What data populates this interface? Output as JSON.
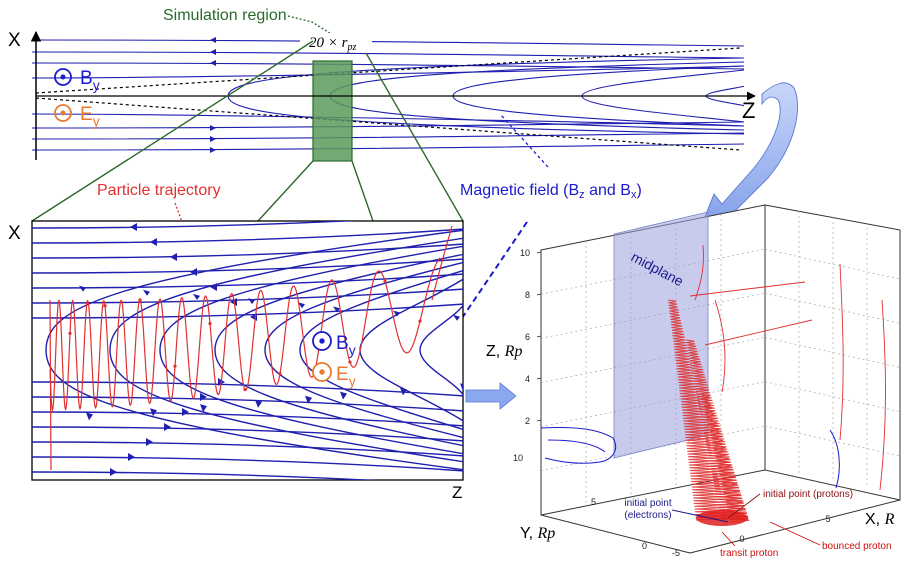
{
  "labels": {
    "simulation_region": "Simulation region",
    "width_math": "20 × r",
    "width_math_sub": "pz",
    "particle_trajectory": "Particle trajectory",
    "magnetic_field": "Magnetic field (B",
    "magnetic_field_z": "z",
    "magnetic_field_and": " and B",
    "magnetic_field_x": "x",
    "magnetic_field_close": ")",
    "top_axis_x": "X",
    "top_axis_z": "Z",
    "inset_axis_x": "X",
    "inset_axis_z": "Z",
    "b_field_symbol": "B",
    "b_field_sub": "y",
    "e_field_symbol": "E",
    "e_field_sub": "y",
    "midplane": "midplane",
    "axis3d_z": "Z, ",
    "axis3d_z_unit": "Rp",
    "axis3d_y": "Y, ",
    "axis3d_y_unit": "Rp",
    "axis3d_x": "X, ",
    "axis3d_x_unit": "R",
    "initial_point_electrons": "initial point",
    "initial_point_electrons_2": "(electrons)",
    "initial_point_protons": "initial point (protons)",
    "transit_proton": "transit proton",
    "bounced_proton": "bounced proton"
  },
  "ticks3d": {
    "z": [
      "10",
      "8",
      "6",
      "4",
      "2"
    ],
    "y": [
      "10",
      "5",
      "0"
    ],
    "x": [
      "-5",
      "0",
      "5"
    ]
  },
  "colors": {
    "field_line": "#1f1fb0",
    "trajectory": "#e03030",
    "region_fill": "#5a9a5a",
    "simulation_label": "#2a6a2a",
    "particle_label": "#e03030",
    "magnetic_label": "#1a1ad0",
    "b_field": "#1a1ad0",
    "e_field": "#e87a30",
    "arrow": "#8aa8ee",
    "midplane": "#9aa0dd"
  }
}
